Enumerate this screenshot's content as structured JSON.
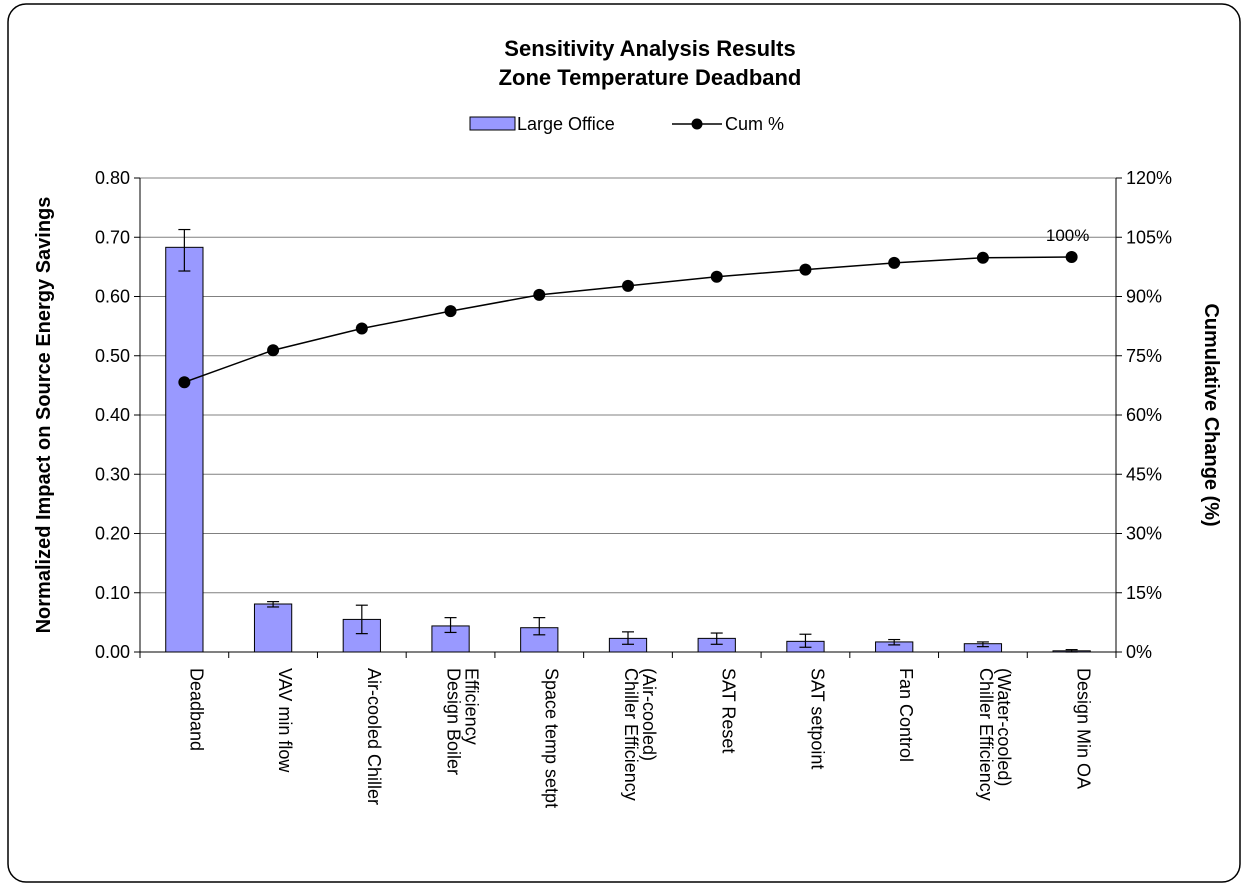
{
  "chart_data": {
    "type": "bar",
    "title": [
      "Sensitivity Analysis Results",
      "Zone Temperature Deadband"
    ],
    "categories": [
      "Deadband",
      "VAV min flow",
      "Air-cooled Chiller",
      "Design Boiler Efficiency",
      "Space temp setpt",
      "Chiller Efficiency (Air-cooled)",
      "SAT Reset",
      "SAT setpoint",
      "Fan Control",
      "Chiller Efficiency (Water-cooled)",
      "Design Min OA"
    ],
    "category_lines": [
      [
        "Deadband"
      ],
      [
        "VAV min flow"
      ],
      [
        "Air-cooled Chiller"
      ],
      [
        "Design Boiler",
        "Efficiency"
      ],
      [
        "Space temp setpt"
      ],
      [
        "Chiller Efficiency",
        "(Air-cooled)"
      ],
      [
        "SAT Reset"
      ],
      [
        "SAT setpoint"
      ],
      [
        "Fan Control"
      ],
      [
        "Chiller Efficiency",
        "(Water-cooled)"
      ],
      [
        "Design Min OA"
      ]
    ],
    "series": [
      {
        "name": "Large Office",
        "kind": "bar",
        "axis": "left",
        "color": "#9999ff",
        "values": [
          0.683,
          0.081,
          0.055,
          0.044,
          0.041,
          0.023,
          0.023,
          0.018,
          0.017,
          0.014,
          0.002
        ],
        "error_low": [
          0.643,
          0.076,
          0.031,
          0.033,
          0.029,
          0.013,
          0.013,
          0.008,
          0.012,
          0.009,
          0.0
        ],
        "error_high": [
          0.713,
          0.085,
          0.079,
          0.058,
          0.058,
          0.034,
          0.032,
          0.03,
          0.021,
          0.017,
          0.004
        ]
      },
      {
        "name": "Cum %",
        "kind": "line",
        "axis": "right",
        "color": "#000000",
        "values": [
          68.3,
          76.4,
          81.9,
          86.3,
          90.4,
          92.7,
          95.0,
          96.8,
          98.5,
          99.8,
          100.0
        ]
      }
    ],
    "ylabel": "Normalized Impact on Source Energy Savings",
    "y2label": "Cumulative  Change (%)",
    "ylim": [
      0,
      0.8
    ],
    "y_ticks": [
      "0.00",
      "0.10",
      "0.20",
      "0.30",
      "0.40",
      "0.50",
      "0.60",
      "0.70",
      "0.80"
    ],
    "y2lim": [
      0,
      120
    ],
    "y2_ticks": [
      "0%",
      "15%",
      "30%",
      "45%",
      "60%",
      "75%",
      "90%",
      "105%",
      "120%"
    ],
    "annotation": "100%",
    "grid": true,
    "legend_position": "top-center"
  }
}
